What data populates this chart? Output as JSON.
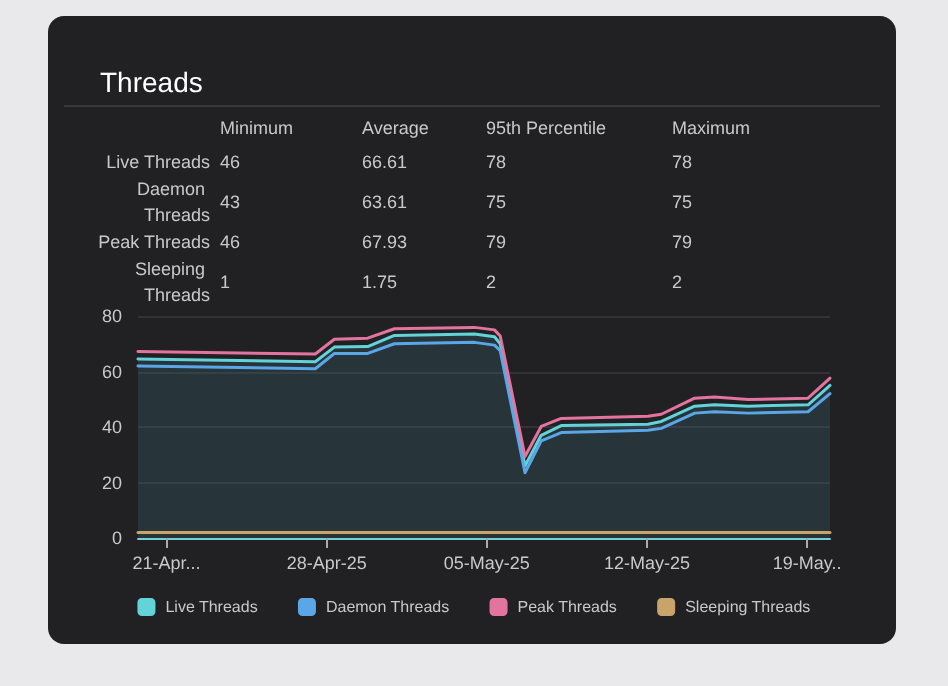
{
  "chart_data": {
    "type": "area",
    "title": "Threads",
    "annotations": [
      "Minimum",
      "Average",
      "95th Percentile",
      "Maximum",
      "Live Threads",
      "46",
      "66.61",
      "78",
      "78",
      "Daemon Threads",
      "43",
      "63.61",
      "75",
      "75",
      "Peak Threads",
      "46",
      "67.93",
      "79",
      "79",
      "Sleeping Threads",
      "1",
      "1.75",
      "2",
      "2"
    ],
    "x": [
      "--04-19T18:00",
      "--04-27T12:00",
      "--04-28T08:00",
      "--04-29T19:00",
      "--04-30T23:00",
      "--05-04T11:00",
      "--05-05T08:00",
      "--05-05T14:00",
      "--05-06T16:00",
      "--05-07T09:00",
      "--05-08T06:00",
      "--05-12T01:00",
      "--05-12T15:00",
      "--05-14T02:00",
      "--05-14T23:00",
      "--05-16T10:00",
      "--05-19T01:00",
      "--05-20T00:00"
    ],
    "series": [
      {
        "name": "Live Threads",
        "color": "#62d3d9",
        "values": [
          64.5,
          63.5,
          68.8,
          69,
          73,
          73.5,
          72.5,
          70,
          26,
          37,
          40.5,
          41,
          42,
          47.5,
          48,
          47.5,
          48,
          55
        ]
      },
      {
        "name": "Daemon Threads",
        "type": "line",
        "color": "#5aa6e6",
        "values": [
          62,
          61,
          66.5,
          66.5,
          70,
          70.5,
          69.5,
          67.5,
          23.5,
          35,
          38,
          38.8,
          39.5,
          45,
          45.5,
          45,
          45.5,
          52
        ]
      },
      {
        "name": "Peak Threads",
        "type": "line",
        "color": "#e2749f",
        "values": [
          67.2,
          66.3,
          71.6,
          72,
          75.4,
          75.9,
          75,
          72.8,
          29.4,
          40.2,
          43.1,
          43.9,
          44.6,
          50.4,
          50.8,
          49.9,
          50.4,
          57.6
        ]
      },
      {
        "name": "Sleeping Threads",
        "type": "line",
        "color": "#c9a46a",
        "values": [
          2,
          2,
          2,
          2,
          2,
          2,
          2,
          2,
          2,
          2,
          2,
          2,
          2,
          2,
          2,
          2,
          2,
          2
        ]
      }
    ],
    "xlim": [
      "--04-19T18:00",
      "--05-20T00:00"
    ],
    "xticks": [
      {
        "value": "--04-21",
        "label": "21-Apr..."
      },
      {
        "value": "--04-28",
        "label": "28-Apr-25"
      },
      {
        "value": "--05-05",
        "label": "05-May-25"
      },
      {
        "value": "--05-12",
        "label": "12-May-25"
      },
      {
        "value": "--05-19",
        "label": "19-May.."
      }
    ],
    "ylim": [
      0,
      80
    ],
    "yticks": [
      0,
      20,
      40,
      60,
      80
    ],
    "grid": "y",
    "legend": "bottom",
    "marker": "none",
    "line_style": "solid"
  }
}
